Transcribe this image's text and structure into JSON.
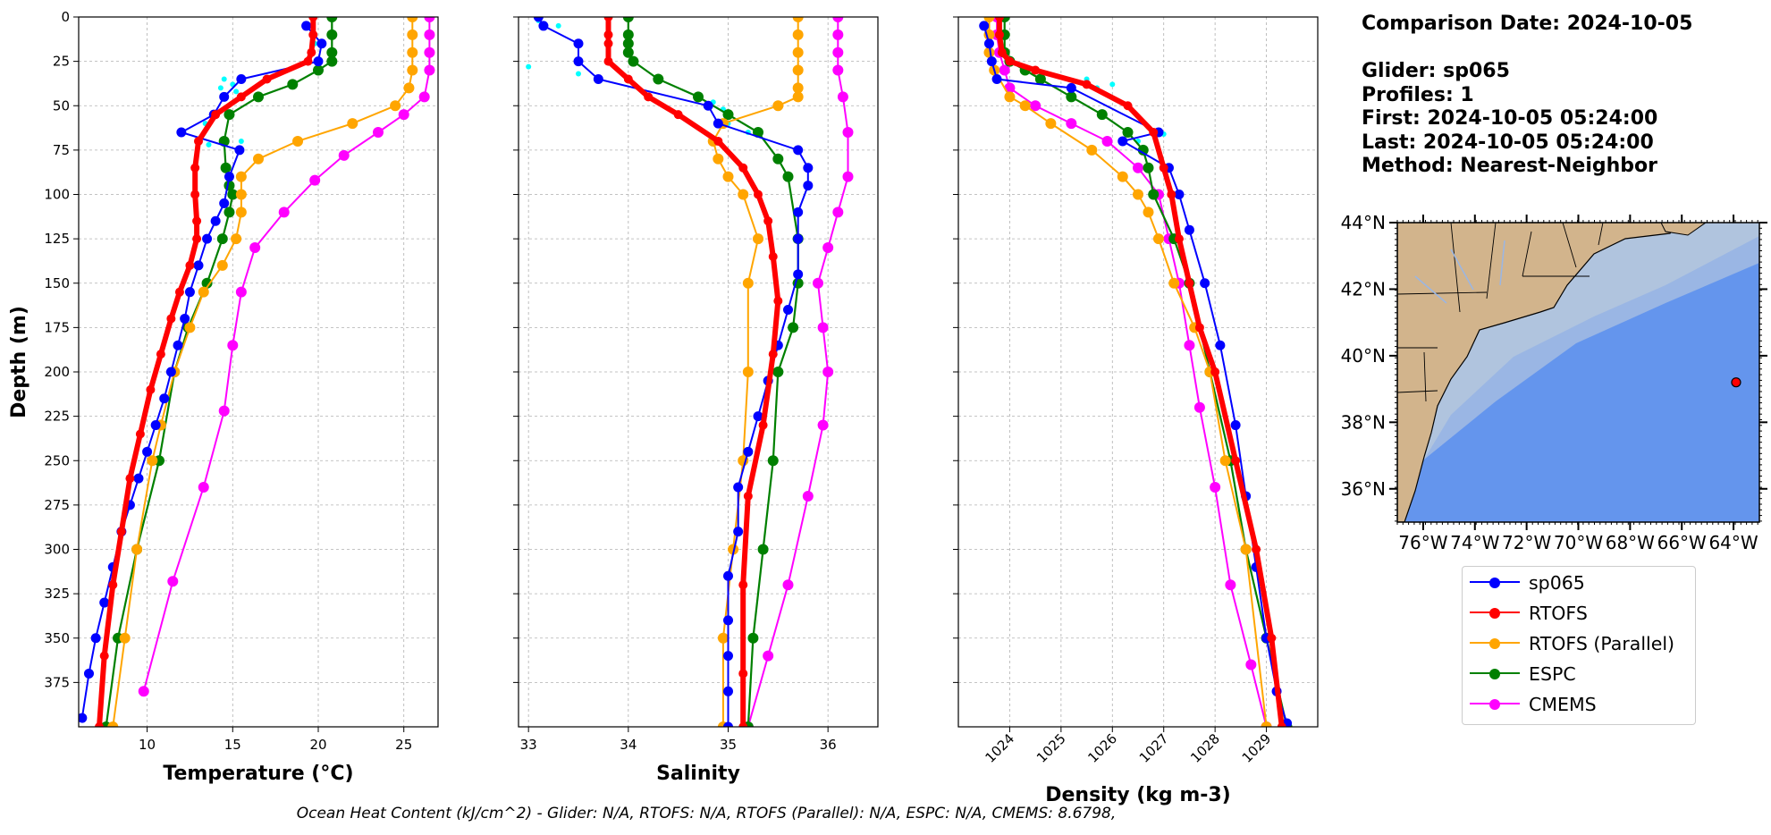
{
  "footer_text": "Ocean Heat Content (kJ/cm^2) - Glider: N/A,  RTOFS: N/A,  RTOFS (Parallel): N/A,  ESPC: N/A,  CMEMS: 8.6798,",
  "info": {
    "comparison_date": "Comparison Date: 2024-10-05",
    "glider": "Glider: sp065",
    "profiles": "Profiles: 1",
    "first": "First: 2024-10-05 05:24:00",
    "last": "Last: 2024-10-05 05:24:00",
    "method": "Method: Nearest-Neighbor"
  },
  "legend": [
    {
      "name": "sp065",
      "color": "#0000ff"
    },
    {
      "name": "RTOFS",
      "color": "#ff0000"
    },
    {
      "name": "RTOFS (Parallel)",
      "color": "#ffa500"
    },
    {
      "name": "ESPC",
      "color": "#008000"
    },
    {
      "name": "CMEMS",
      "color": "#ff00ff"
    }
  ],
  "colors": {
    "glider": "#0000ff",
    "glider_points": "#00ffff",
    "rtofs": "#ff0000",
    "rtofs_parallel": "#ffa500",
    "espc": "#008000",
    "cmems": "#ff00ff",
    "land": "#d2b48c",
    "ocean_shelf": "#b0c4de",
    "ocean_mid": "#9ab6e4",
    "ocean_deep": "#6495ed",
    "marker": "#ff0000"
  },
  "chart_data": [
    {
      "type": "line",
      "panel": "temperature",
      "xlabel": "Temperature (°C)",
      "ylabel": "Depth (m)",
      "xlim": [
        6,
        27
      ],
      "ylim": [
        400,
        0
      ],
      "xticks": [
        10,
        15,
        20,
        25
      ],
      "yticks": [
        0,
        25,
        50,
        75,
        100,
        125,
        150,
        175,
        200,
        225,
        250,
        275,
        300,
        325,
        350,
        375
      ],
      "grid": true,
      "scatter_points": [
        {
          "x": 14.5,
          "y": 35
        },
        {
          "x": 15.0,
          "y": 38
        },
        {
          "x": 14.3,
          "y": 40
        },
        {
          "x": 15.2,
          "y": 42
        },
        {
          "x": 13.4,
          "y": 60
        },
        {
          "x": 15.5,
          "y": 70
        },
        {
          "x": 13.6,
          "y": 72
        },
        {
          "x": 19.8,
          "y": 15
        }
      ],
      "series": [
        {
          "name": "sp065",
          "x": [
            19.3,
            20.2,
            20.0,
            15.5,
            14.5,
            13.9,
            12.0,
            15.4,
            14.8,
            14.5,
            14.0,
            13.5,
            13.0,
            12.5,
            12.2,
            11.8,
            11.4,
            11.0,
            10.5,
            10.0,
            9.5,
            9.0,
            8.5,
            8.0,
            7.5,
            7.0,
            6.6,
            6.2
          ],
          "y": [
            5,
            15,
            25,
            35,
            45,
            55,
            65,
            75,
            90,
            105,
            115,
            125,
            140,
            155,
            170,
            185,
            200,
            215,
            230,
            245,
            260,
            275,
            290,
            310,
            330,
            350,
            370,
            395
          ]
        },
        {
          "name": "RTOFS",
          "x": [
            19.7,
            19.7,
            19.6,
            19.4,
            17.0,
            15.5,
            14.0,
            13.0,
            12.8,
            12.8,
            12.9,
            12.9,
            12.5,
            11.9,
            11.4,
            10.8,
            10.2,
            9.6,
            9.0,
            8.5,
            8.0,
            7.5,
            7.2
          ],
          "y": [
            0,
            10,
            20,
            25,
            35,
            45,
            55,
            70,
            85,
            100,
            115,
            125,
            140,
            155,
            170,
            190,
            210,
            235,
            260,
            290,
            320,
            360,
            400
          ]
        },
        {
          "name": "RTOFS (Parallel)",
          "x": [
            25.5,
            25.5,
            25.5,
            25.5,
            25.3,
            24.5,
            22.0,
            18.8,
            16.5,
            15.5,
            15.5,
            15.5,
            15.2,
            14.4,
            13.3,
            12.5,
            11.6,
            10.8,
            10.3,
            9.4,
            8.7,
            8.0
          ],
          "y": [
            0,
            10,
            20,
            30,
            40,
            50,
            60,
            70,
            80,
            90,
            100,
            110,
            125,
            140,
            155,
            175,
            200,
            230,
            250,
            300,
            350,
            400
          ]
        },
        {
          "name": "ESPC",
          "x": [
            20.8,
            20.8,
            20.8,
            20.8,
            20.0,
            18.5,
            16.5,
            14.8,
            14.5,
            14.6,
            14.8,
            15.0,
            14.8,
            14.4,
            13.5,
            12.4,
            11.6,
            10.7,
            9.4,
            8.3,
            7.6
          ],
          "y": [
            0,
            10,
            20,
            25,
            30,
            38,
            45,
            55,
            70,
            85,
            95,
            100,
            110,
            125,
            150,
            175,
            200,
            250,
            300,
            350,
            400
          ]
        },
        {
          "name": "CMEMS",
          "x": [
            26.5,
            26.5,
            26.5,
            26.5,
            26.2,
            25.0,
            23.5,
            21.5,
            19.8,
            18.0,
            16.3,
            15.5,
            15.0,
            14.5,
            13.3,
            11.5,
            9.8
          ],
          "y": [
            0,
            10,
            20,
            30,
            45,
            55,
            65,
            78,
            92,
            110,
            130,
            155,
            185,
            222,
            265,
            318,
            380
          ]
        }
      ]
    },
    {
      "type": "line",
      "panel": "salinity",
      "xlabel": "Salinity",
      "xlim": [
        32.9,
        36.5
      ],
      "ylim": [
        400,
        0
      ],
      "xticks": [
        33,
        34,
        35,
        36
      ],
      "grid": true,
      "scatter_points": [
        {
          "x": 33.1,
          "y": 2
        },
        {
          "x": 33.3,
          "y": 5
        },
        {
          "x": 33.5,
          "y": 25
        },
        {
          "x": 33.0,
          "y": 28
        },
        {
          "x": 33.5,
          "y": 32
        },
        {
          "x": 34.85,
          "y": 48
        },
        {
          "x": 34.95,
          "y": 52
        },
        {
          "x": 35.0,
          "y": 60
        },
        {
          "x": 35.2,
          "y": 65
        }
      ],
      "series": [
        {
          "name": "sp065",
          "x": [
            33.1,
            33.15,
            33.5,
            33.5,
            33.7,
            34.8,
            34.9,
            35.7,
            35.8,
            35.8,
            35.7,
            35.7,
            35.7,
            35.6,
            35.5,
            35.4,
            35.3,
            35.2,
            35.1,
            35.1,
            35.0,
            35.0,
            35.0,
            35.0,
            35.0
          ],
          "y": [
            0,
            5,
            15,
            25,
            35,
            50,
            60,
            75,
            85,
            95,
            110,
            125,
            145,
            165,
            185,
            205,
            225,
            245,
            265,
            290,
            315,
            340,
            360,
            380,
            400
          ]
        },
        {
          "name": "RTOFS",
          "x": [
            33.8,
            33.8,
            33.8,
            33.8,
            34.0,
            34.2,
            34.5,
            34.9,
            35.15,
            35.3,
            35.4,
            35.45,
            35.5,
            35.45,
            35.35,
            35.2,
            35.15,
            35.15,
            35.15
          ],
          "y": [
            0,
            10,
            15,
            25,
            35,
            45,
            55,
            70,
            85,
            100,
            115,
            135,
            160,
            190,
            230,
            270,
            320,
            370,
            400
          ]
        },
        {
          "name": "RTOFS (Parallel)",
          "x": [
            35.7,
            35.7,
            35.7,
            35.7,
            35.7,
            35.7,
            35.5,
            34.95,
            34.85,
            34.9,
            35.0,
            35.15,
            35.3,
            35.2,
            35.2,
            35.15,
            35.05,
            34.95,
            34.95
          ],
          "y": [
            0,
            10,
            20,
            30,
            40,
            45,
            50,
            60,
            70,
            80,
            90,
            100,
            125,
            150,
            200,
            250,
            300,
            350,
            400
          ]
        },
        {
          "name": "ESPC",
          "x": [
            34.0,
            34.0,
            34.0,
            34.0,
            34.05,
            34.3,
            34.7,
            35.0,
            35.3,
            35.5,
            35.6,
            35.7,
            35.7,
            35.65,
            35.5,
            35.45,
            35.35,
            35.25,
            35.2
          ],
          "y": [
            0,
            10,
            15,
            20,
            25,
            35,
            45,
            55,
            65,
            80,
            90,
            125,
            150,
            175,
            200,
            250,
            300,
            350,
            400
          ]
        },
        {
          "name": "CMEMS",
          "x": [
            36.1,
            36.1,
            36.1,
            36.1,
            36.15,
            36.2,
            36.2,
            36.1,
            36.0,
            35.9,
            35.95,
            36.0,
            35.95,
            35.8,
            35.6,
            35.4,
            35.2
          ],
          "y": [
            0,
            10,
            20,
            30,
            45,
            65,
            90,
            110,
            130,
            150,
            175,
            200,
            230,
            270,
            320,
            360,
            400
          ]
        }
      ]
    },
    {
      "type": "line",
      "panel": "density",
      "xlabel": "Density (kg m-3)",
      "xlim": [
        1023.0,
        1030.0
      ],
      "ylim": [
        400,
        0
      ],
      "xticks": [
        1024,
        1025,
        1026,
        1027,
        1028,
        1029
      ],
      "grid": true,
      "scatter_points": [
        {
          "x": 1025.5,
          "y": 35
        },
        {
          "x": 1026.0,
          "y": 38
        },
        {
          "x": 1025.7,
          "y": 40
        },
        {
          "x": 1026.7,
          "y": 62
        },
        {
          "x": 1027.0,
          "y": 66
        },
        {
          "x": 1026.5,
          "y": 70
        }
      ],
      "series": [
        {
          "name": "sp065",
          "x": [
            1023.5,
            1023.6,
            1023.65,
            1023.75,
            1025.2,
            1026.9,
            1026.2,
            1027.1,
            1027.3,
            1027.5,
            1027.8,
            1028.1,
            1028.4,
            1028.6,
            1028.8,
            1029.0,
            1029.2,
            1029.4
          ],
          "y": [
            5,
            15,
            25,
            35,
            40,
            65,
            70,
            85,
            100,
            120,
            150,
            185,
            230,
            270,
            310,
            350,
            380,
            398
          ]
        },
        {
          "name": "RTOFS",
          "x": [
            1023.8,
            1023.8,
            1023.85,
            1024.0,
            1024.5,
            1025.5,
            1026.3,
            1026.8,
            1027.0,
            1027.15,
            1027.3,
            1027.5,
            1027.7,
            1028.0,
            1028.4,
            1028.8,
            1029.1,
            1029.3
          ],
          "y": [
            0,
            10,
            20,
            25,
            30,
            38,
            50,
            65,
            85,
            100,
            125,
            150,
            175,
            200,
            250,
            300,
            350,
            400
          ]
        },
        {
          "name": "RTOFS (Parallel)",
          "x": [
            1023.6,
            1023.6,
            1023.6,
            1023.7,
            1024.0,
            1024.3,
            1024.8,
            1025.6,
            1026.2,
            1026.5,
            1026.7,
            1026.9,
            1027.2,
            1027.6,
            1027.9,
            1028.2,
            1028.6,
            1029.0
          ],
          "y": [
            0,
            10,
            20,
            30,
            45,
            50,
            60,
            75,
            90,
            100,
            110,
            125,
            150,
            175,
            200,
            250,
            300,
            400
          ]
        },
        {
          "name": "ESPC",
          "x": [
            1023.9,
            1023.9,
            1023.9,
            1024.0,
            1024.3,
            1024.6,
            1025.2,
            1025.8,
            1026.3,
            1026.6,
            1026.7,
            1026.8,
            1027.2,
            1027.5,
            1027.9,
            1028.3,
            1028.6,
            1029.0,
            1029.4
          ],
          "y": [
            0,
            10,
            20,
            25,
            30,
            35,
            45,
            55,
            65,
            75,
            85,
            100,
            125,
            150,
            200,
            250,
            300,
            350,
            400
          ]
        },
        {
          "name": "CMEMS",
          "x": [
            1023.75,
            1023.75,
            1023.8,
            1023.9,
            1024.0,
            1024.5,
            1025.2,
            1025.9,
            1026.5,
            1026.9,
            1027.1,
            1027.3,
            1027.5,
            1027.7,
            1028.0,
            1028.3,
            1028.7,
            1029.0
          ],
          "y": [
            0,
            10,
            20,
            30,
            40,
            50,
            60,
            70,
            85,
            100,
            125,
            150,
            185,
            220,
            265,
            320,
            365,
            400
          ]
        }
      ]
    }
  ],
  "map": {
    "lat_labels": [
      "44°N",
      "42°N",
      "40°N",
      "38°N",
      "36°N"
    ],
    "lon_labels": [
      "76°W",
      "74°W",
      "72°W",
      "70°W",
      "68°W",
      "66°W",
      "64°W"
    ],
    "lat_values": [
      44,
      42,
      40,
      38,
      36
    ],
    "lon_values": [
      -76,
      -74,
      -72,
      -70,
      -68,
      -66,
      -64
    ],
    "lon_range": [
      -77,
      -63
    ],
    "lat_range": [
      35,
      44
    ],
    "marker": {
      "lon": -63.9,
      "lat": 39.2
    }
  }
}
